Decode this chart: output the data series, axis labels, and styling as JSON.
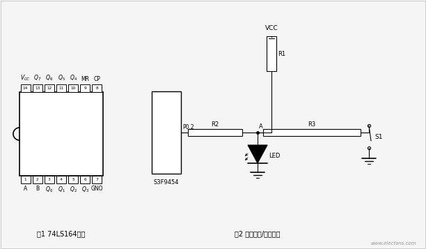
{
  "bg_color": "#f5f5f5",
  "line_color": "#000000",
  "fig_width": 6.12,
  "fig_height": 3.57,
  "caption1": "图1 74LS164引脚",
  "caption2": "图2 引脚输入/输出复用",
  "watermark": "www.elecfans.com",
  "ic1_label": "S3F9454",
  "vcc_label": "VCC",
  "r1_label": "R1",
  "r2_label": "R2",
  "r3_label": "R3",
  "led_label": "LED",
  "s1_label": "S1",
  "p02_label": "P0.2",
  "a_label": "A",
  "top_pin_nums": [
    "14",
    "13",
    "12",
    "11",
    "10",
    "9",
    "8"
  ],
  "bot_pin_nums": [
    "1",
    "2",
    "3",
    "4",
    "5",
    "6",
    "7"
  ]
}
